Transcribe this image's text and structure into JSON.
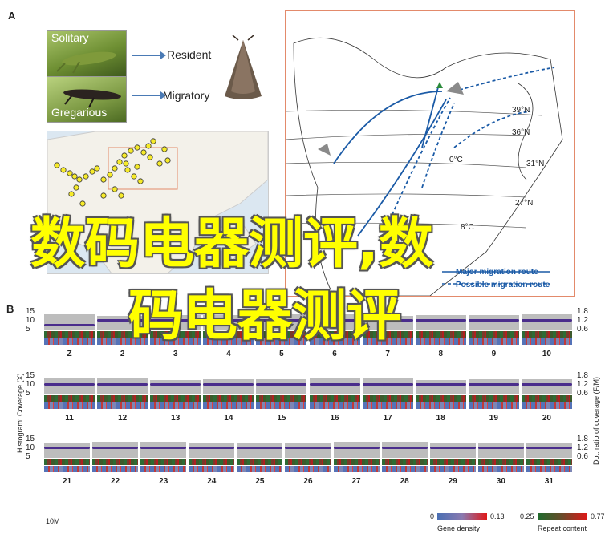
{
  "panel_a": {
    "letter": "A",
    "photo_top_label": "Solitary",
    "photo_bottom_label": "Gregarious",
    "arrow_labels": [
      "Resident",
      "Migratory"
    ],
    "latitudes": [
      "39°N",
      "36°N",
      "31°N",
      "27°N",
      "8°C",
      "0°C"
    ],
    "legend_items": [
      "Major migration route",
      "Possible migration route"
    ]
  },
  "panel_b": {
    "letter": "B",
    "left_ticks": [
      "15",
      "10",
      "5"
    ],
    "right_ticks": [
      "1.8",
      "1.2",
      "0.6"
    ],
    "left_axis_title": "Histogram: Coverage (X)",
    "right_axis_title": "Dot: ratio of coverage (F/M)",
    "rows": [
      [
        "Z",
        "2",
        "3",
        "4",
        "5",
        "6",
        "7",
        "8",
        "9",
        "10"
      ],
      [
        "11",
        "12",
        "13",
        "14",
        "15",
        "16",
        "17",
        "18",
        "19",
        "20"
      ],
      [
        "21",
        "22",
        "23",
        "24",
        "25",
        "26",
        "27",
        "28",
        "29",
        "30",
        "31"
      ]
    ],
    "scale_bar": "10M",
    "gene_density": {
      "label": "Gene density",
      "min": "0",
      "max": "0.13"
    },
    "repeat_content": {
      "label": "Repeat content",
      "min": "0.25",
      "max": "0.77"
    }
  },
  "watermark": {
    "line1": "数码电器测评,数",
    "line2": "码电器测评"
  },
  "colors": {
    "map_border": "#e38a6b",
    "route": "#1a5aa6",
    "dots": "#4a2d8c",
    "histogram": "#b8b8b8",
    "watermark": "#ffff00"
  }
}
